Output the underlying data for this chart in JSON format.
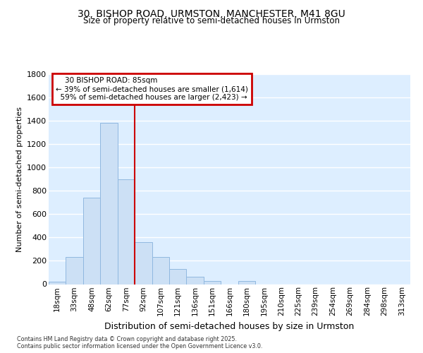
{
  "title_line1": "30, BISHOP ROAD, URMSTON, MANCHESTER, M41 8GU",
  "title_line2": "Size of property relative to semi-detached houses in Urmston",
  "xlabel": "Distribution of semi-detached houses by size in Urmston",
  "ylabel": "Number of semi-detached properties",
  "annotation_title": "30 BISHOP ROAD: 85sqm",
  "annotation_line1": "← 39% of semi-detached houses are smaller (1,614)",
  "annotation_line2": "59% of semi-detached houses are larger (2,423) →",
  "bin_labels": [
    "18sqm",
    "33sqm",
    "48sqm",
    "62sqm",
    "77sqm",
    "92sqm",
    "107sqm",
    "121sqm",
    "136sqm",
    "151sqm",
    "166sqm",
    "180sqm",
    "195sqm",
    "210sqm",
    "225sqm",
    "239sqm",
    "254sqm",
    "269sqm",
    "284sqm",
    "298sqm",
    "313sqm"
  ],
  "bar_values": [
    20,
    230,
    740,
    1380,
    900,
    360,
    230,
    130,
    65,
    25,
    0,
    25,
    0,
    0,
    0,
    0,
    0,
    0,
    0,
    0,
    0
  ],
  "bar_color": "#cce0f5",
  "bar_edge_color": "#90b8e0",
  "vline_color": "#cc0000",
  "annotation_box_color": "#cc0000",
  "ylim": [
    0,
    1800
  ],
  "yticks": [
    0,
    200,
    400,
    600,
    800,
    1000,
    1200,
    1400,
    1600,
    1800
  ],
  "background_color": "#ffffff",
  "plot_bg_color": "#ddeeff",
  "grid_color": "#ffffff",
  "footer_line1": "Contains HM Land Registry data © Crown copyright and database right 2025.",
  "footer_line2": "Contains public sector information licensed under the Open Government Licence v3.0."
}
